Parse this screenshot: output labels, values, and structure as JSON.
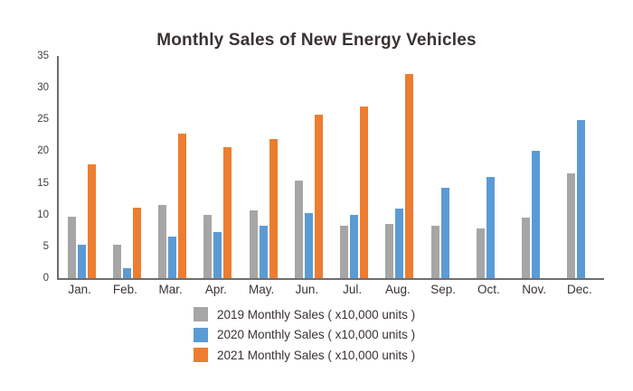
{
  "title": "Monthly Sales of New Energy Vehicles",
  "chart_data": {
    "type": "bar",
    "title": "Monthly Sales of New Energy Vehicles",
    "categories": [
      "Jan.",
      "Feb.",
      "Mar.",
      "Apr.",
      "May.",
      "Jun.",
      "Jul.",
      "Aug.",
      "Sep.",
      "Oct.",
      "Nov.",
      "Dec."
    ],
    "series": [
      {
        "name": "2019 Monthly Sales ( x10,000 units )",
        "color": "#a6a6a6",
        "values": [
          9.7,
          5.3,
          11.5,
          10.0,
          10.7,
          15.4,
          8.2,
          8.6,
          8.2,
          7.8,
          9.6,
          16.5
        ]
      },
      {
        "name": "2020 Monthly Sales ( x10,000 units )",
        "color": "#5b9bd5",
        "values": [
          5.2,
          1.6,
          6.5,
          7.2,
          8.2,
          10.2,
          9.9,
          11.0,
          14.2,
          16.0,
          20.0,
          24.9
        ]
      },
      {
        "name": "2021 Monthly Sales ( x10,000 units )",
        "color": "#ed7d31",
        "values": [
          17.9,
          11.1,
          22.7,
          20.7,
          21.9,
          25.7,
          27.1,
          32.1,
          null,
          null,
          null,
          null
        ]
      }
    ],
    "xlabel": "",
    "ylabel": "",
    "ylim": [
      0,
      35
    ],
    "yticks": [
      0,
      5,
      10,
      15,
      20,
      25,
      30,
      35
    ],
    "grid": false,
    "legend_position": "bottom",
    "axis_color": "#6e6e6e",
    "tick_label_color": "#3f3f3f"
  }
}
